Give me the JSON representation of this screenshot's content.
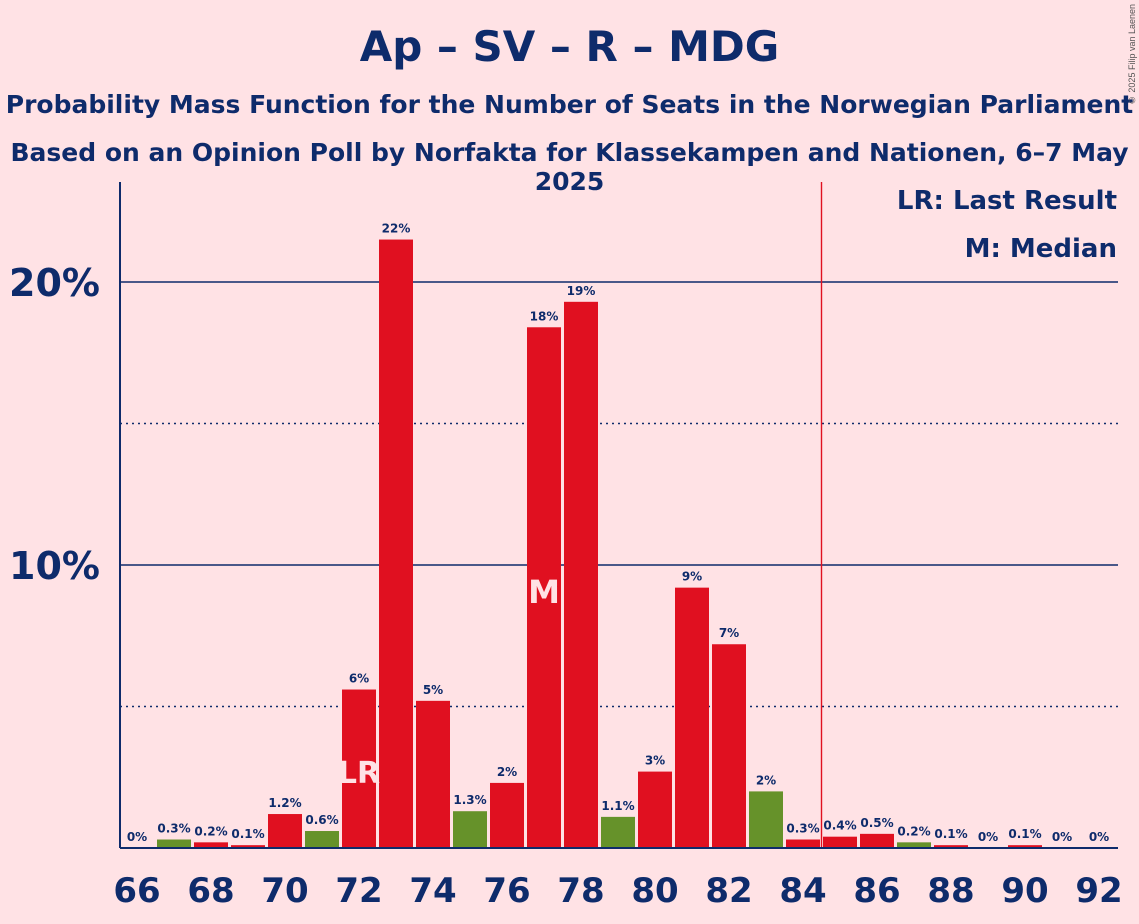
{
  "title": "Ap – SV – R – MDG",
  "subtitle_line1": "Probability Mass Function for the Number of Seats in the Norwegian Parliament",
  "subtitle_line2": "Based on an Opinion Poll by Norfakta for Klassekampen and Nationen, 6–7 May 2025",
  "copyright": "© 2025 Filip van Laenen",
  "legend": {
    "lr": "LR: Last Result",
    "m": "M: Median"
  },
  "colors": {
    "background": "#FFE2E5",
    "text": "#0E2B6B",
    "red": "#E01020",
    "green": "#66922A",
    "majority_line": "#E01020"
  },
  "chart_data": {
    "type": "bar",
    "title": "Ap – SV – R – MDG",
    "xlabel": "",
    "ylabel": "",
    "ylim": [
      0,
      23.5
    ],
    "y_ticks": [
      {
        "value": 10,
        "label": "10%"
      },
      {
        "value": 20,
        "label": "20%"
      }
    ],
    "y_dotted_gridlines": [
      5,
      15
    ],
    "x_tick_labels": [
      66,
      68,
      70,
      72,
      74,
      76,
      78,
      80,
      82,
      84,
      86,
      88,
      90,
      92
    ],
    "majority_line_x": 84.5,
    "last_result_seat": 72,
    "median_seat": 77,
    "categories": [
      66,
      67,
      68,
      69,
      70,
      71,
      72,
      73,
      74,
      75,
      76,
      77,
      78,
      79,
      80,
      81,
      82,
      83,
      84,
      85,
      86,
      87,
      88,
      89,
      90,
      91,
      92
    ],
    "values": [
      0,
      0.3,
      0.2,
      0.1,
      1.2,
      0.6,
      5.6,
      21.5,
      5.2,
      1.3,
      2.3,
      18.4,
      19.3,
      1.1,
      2.7,
      9.2,
      7.2,
      2.0,
      0.3,
      0.4,
      0.5,
      0.2,
      0.1,
      0,
      0.1,
      0,
      0
    ],
    "labels": [
      "0%",
      "0.3%",
      "0.2%",
      "0.1%",
      "1.2%",
      "0.6%",
      "6%",
      "22%",
      "5%",
      "1.3%",
      "2%",
      "18%",
      "19%",
      "1.1%",
      "3%",
      "9%",
      "7%",
      "2%",
      "0.3%",
      "0.4%",
      "0.5%",
      "0.2%",
      "0.1%",
      "0%",
      "0.1%",
      "0%",
      "0%"
    ],
    "bar_colors": [
      "red",
      "green",
      "red",
      "red",
      "red",
      "green",
      "red",
      "red",
      "red",
      "green",
      "red",
      "red",
      "red",
      "green",
      "red",
      "red",
      "red",
      "green",
      "red",
      "red",
      "red",
      "green",
      "red",
      "red",
      "red",
      "red",
      "red"
    ],
    "markers": {
      "LR": "LR",
      "M": "M"
    }
  }
}
